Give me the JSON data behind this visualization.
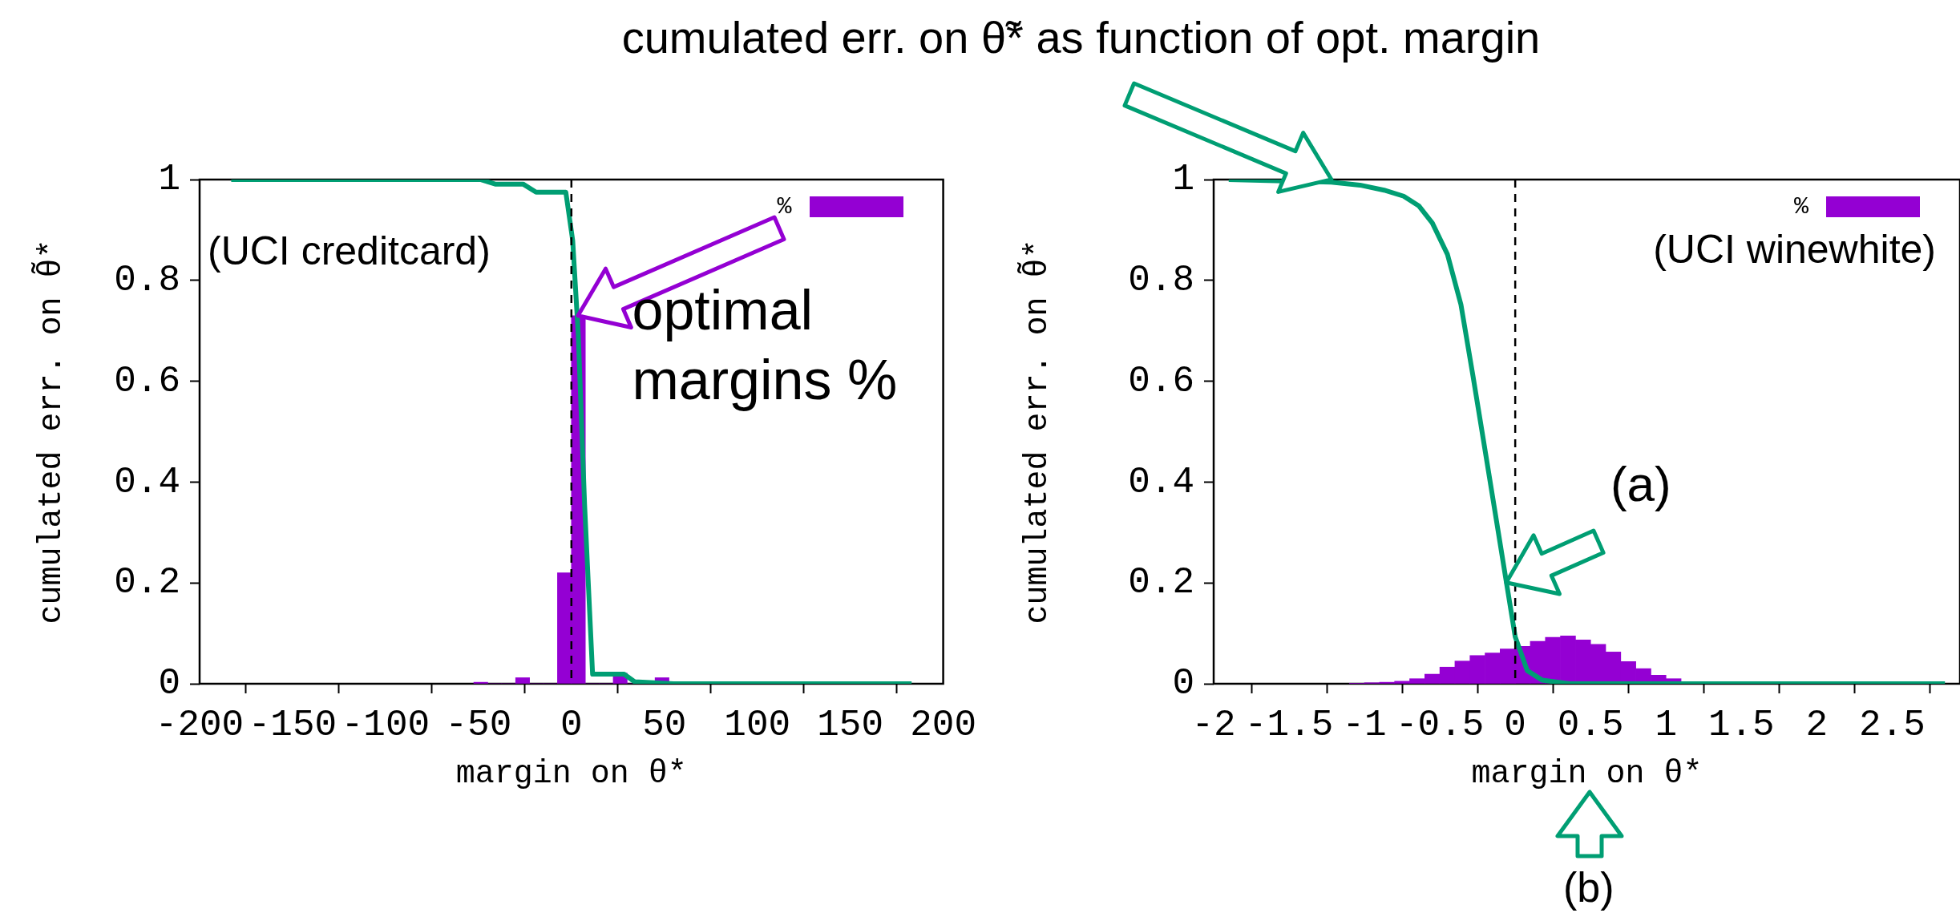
{
  "chart_data": [
    {
      "type": "histogram",
      "xlabel": "margin on θ*",
      "ylabel": "cumulated err. on θ̃*",
      "xlim": [
        -200,
        200
      ],
      "xticks": [
        -200,
        -150,
        -100,
        -50,
        0,
        50,
        100,
        150,
        200
      ],
      "ylim": [
        0,
        1
      ],
      "yticks": [
        0,
        0.2,
        0.4,
        0.6,
        0.8,
        1
      ],
      "grid": false,
      "legend": "top right",
      "bins": [
        -52.5,
        -45,
        -37.5,
        -30,
        -22.5,
        -15,
        -7.5,
        0,
        7.5,
        15,
        22.5,
        30,
        37.5,
        45,
        52.5
      ],
      "series": [
        {
          "name": "%",
          "color": "#9400d3",
          "values": [
            0.003,
            0,
            0,
            0.012,
            0,
            0,
            0.22,
            0.73,
            0,
            0,
            0.021,
            0,
            0,
            0.012
          ]
        },
        {
          "type": "line",
          "color": "#009e73",
          "x": [
            -183,
            -49,
            -41,
            -26,
            -19,
            -3,
            0.7,
            3.7,
            7.1,
            11.4,
            28.3,
            34,
            55,
            183
          ],
          "values": [
            1,
            1,
            0.991,
            0.991,
            0.975,
            0.975,
            0.879,
            0.692,
            0.355,
            0.019,
            0.019,
            0.004,
            0,
            0
          ]
        }
      ],
      "ref_lines": [
        {
          "axis": "x",
          "value": 0,
          "color": "#000000",
          "line_style": "dashed"
        }
      ],
      "annotations": [
        "(UCI creditcard)",
        {
          "text": "optimal margins %",
          "x": 3.75,
          "y": 0.73
        }
      ]
    },
    {
      "type": "histogram",
      "xlabel": "margin on θ*",
      "ylabel": "cumulated err. on θ̃*",
      "xlim": [
        -2,
        2.95
      ],
      "xticks": [
        -2,
        -1.5,
        -1,
        -0.5,
        0,
        0.5,
        1,
        1.5,
        2,
        2.5
      ],
      "ylim": [
        0,
        1
      ],
      "yticks": [
        0,
        0.2,
        0.4,
        0.6,
        0.8,
        1
      ],
      "grid": false,
      "legend": "top right",
      "bins": [
        -1.1,
        -1,
        -0.9,
        -0.8,
        -0.7,
        -0.6,
        -0.5,
        -0.4,
        -0.3,
        -0.2,
        -0.1,
        0,
        0.1,
        0.2,
        0.3,
        0.4,
        0.5,
        0.6,
        0.7,
        0.8,
        0.9,
        1,
        1.1,
        1.2
      ],
      "series": [
        {
          "name": "%",
          "color": "#9400d3",
          "values": [
            0.001,
            0.002,
            0.003,
            0.005,
            0.01,
            0.019,
            0.033,
            0.045,
            0.056,
            0.061,
            0.069,
            0.074,
            0.084,
            0.092,
            0.095,
            0.087,
            0.078,
            0.063,
            0.044,
            0.03,
            0.017,
            0.01,
            null
          ]
        },
        {
          "type": "line",
          "color": "#009e73",
          "x": [
            -1.9,
            -1.22,
            -1.03,
            -0.87,
            -0.74,
            -0.64,
            -0.55,
            -0.45,
            -0.36,
            -0.28,
            -0.22,
            -0.14,
            -0.06,
            0,
            0.08,
            0.18,
            0.36,
            2.85
          ],
          "values": [
            1,
            0.995,
            0.989,
            0.979,
            0.967,
            0.948,
            0.914,
            0.852,
            0.752,
            0.61,
            0.5,
            0.352,
            0.204,
            0.093,
            0.026,
            0.007,
            0,
            0
          ]
        }
      ],
      "ref_lines": [
        {
          "axis": "x",
          "value": 0,
          "color": "#000000",
          "line_style": "dashed"
        }
      ],
      "annotations": [
        "(UCI winewhite)",
        {
          "text": "cumulated err. on θ̃* as function of opt. margin",
          "x": -1.22,
          "y": 1
        },
        {
          "text": "(a)",
          "x": -0.06,
          "y": 0.2
        },
        "(b)"
      ]
    }
  ]
}
